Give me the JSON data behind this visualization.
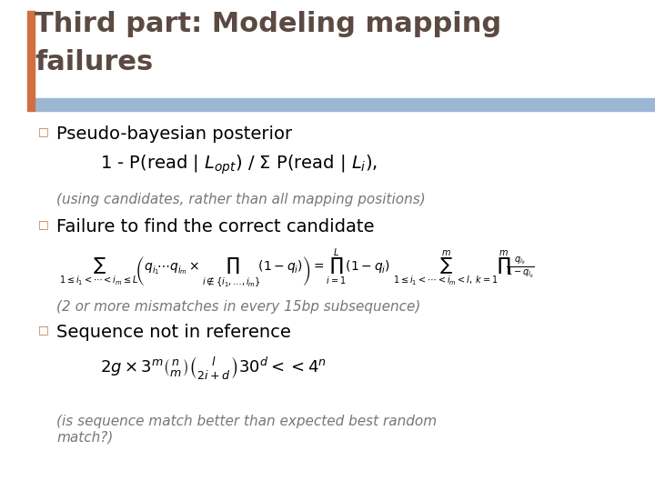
{
  "bg_color": "#ffffff",
  "title_text": "Third part: Modeling mapping\nfailures",
  "title_color": "#5B4A42",
  "title_fontsize": 22,
  "header_bar_color": "#9BB7D4",
  "accent_bar_color": "#D07040",
  "bullet_color": "#C87941",
  "bullet_char": "□",
  "bullet1": "Pseudo-bayesian posterior",
  "note1": "(using candidates, rather than all mapping positions)",
  "bullet2": "Failure to find the correct candidate",
  "note2": "(2 or more mismatches in every 15bp subsequence)",
  "bullet3": "Sequence not in reference",
  "note3": "(is sequence match better than expected best random\nmatch?)",
  "body_fontsize": 14,
  "formula_fontsize": 11,
  "note_fontsize": 11,
  "body_color": "#000000"
}
